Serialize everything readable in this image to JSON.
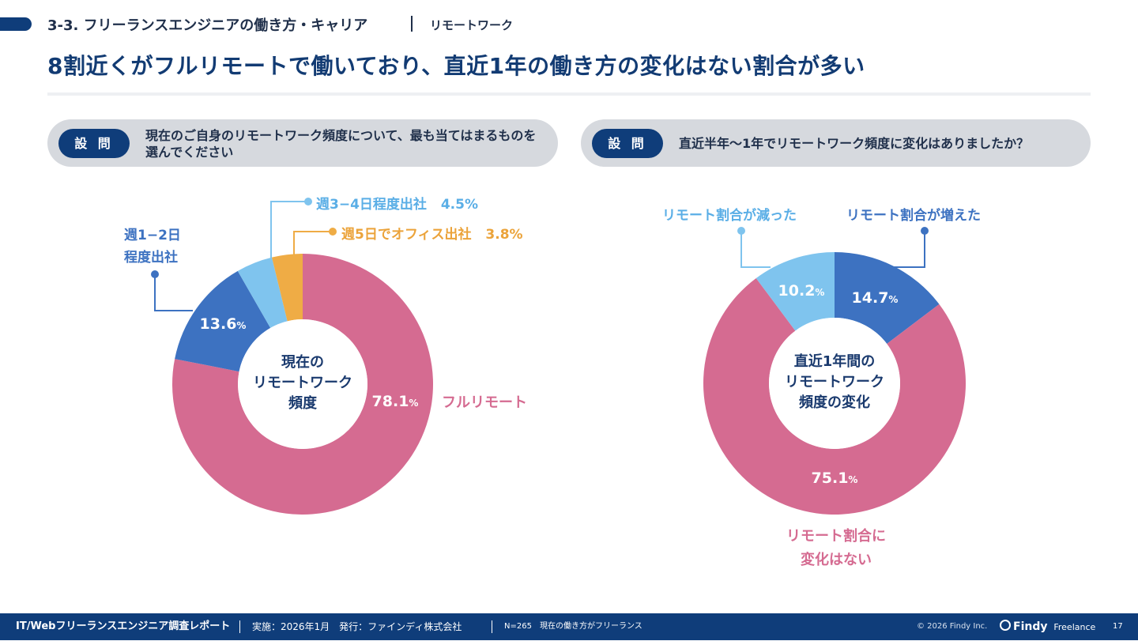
{
  "header": {
    "section": "3-3. フリーランスエンジニアの働き方・キャリア",
    "subsection": "リモートワーク",
    "title": "8割近くがフルリモートで働いており、直近1年の働き方の変化はない割合が多い"
  },
  "questions": [
    {
      "badge": "設 問",
      "text": "現在のご自身のリモートワーク頻度について、最も当てはまるものを選んでください"
    },
    {
      "badge": "設 問",
      "text": "直近半年〜1年でリモートワーク頻度に変化はありましたか？"
    }
  ],
  "chart_data": [
    {
      "type": "pie",
      "title": "",
      "center_label": [
        "現在の",
        "リモートワーク",
        "頻度"
      ],
      "categories": [
        "フルリモート",
        "週1−2日程度出社",
        "週3−4日程度出社",
        "週5日でオフィス出社"
      ],
      "values": [
        78.1,
        13.6,
        4.5,
        3.8
      ],
      "value_labels": [
        "78.1",
        "13.6",
        "4.5%",
        "3.8%"
      ],
      "category_labels": [
        "フルリモート",
        "週1−2日\n程度出社",
        "週3−4日程度出社",
        "週5日でオフィス出社"
      ],
      "colors": [
        "#d56b91",
        "#3d72c1",
        "#7fc4ee",
        "#efac45"
      ],
      "start_angle_deg": 0,
      "direction": "clockwise",
      "percent_suffix": "%"
    },
    {
      "type": "pie",
      "title": "",
      "center_label": [
        "直近1年間の",
        "リモートワーク",
        "頻度の変化"
      ],
      "categories": [
        "リモート割合が増えた",
        "リモート割合に変化はない",
        "リモート割合が減った"
      ],
      "values": [
        14.7,
        75.1,
        10.2
      ],
      "value_labels": [
        "14.7",
        "75.1",
        "10.2"
      ],
      "category_labels": [
        "リモート割合が増えた",
        "リモート割合に\n変化はない",
        "リモート割合が減った"
      ],
      "colors": [
        "#3d72c1",
        "#d56b91",
        "#7fc4ee"
      ],
      "start_angle_deg": 0,
      "direction": "clockwise",
      "percent_suffix": "%"
    }
  ],
  "footer": {
    "report": "IT/Webフリーランスエンジニア調査レポート",
    "date": "実施：2026年1月　発行：ファインディ株式会社",
    "note": "N=265　現在の働き方がフリーランス",
    "copyright": "© 2026 Findy Inc.",
    "brand": "Findy",
    "brand_sub": "Freelance",
    "page": "17"
  }
}
